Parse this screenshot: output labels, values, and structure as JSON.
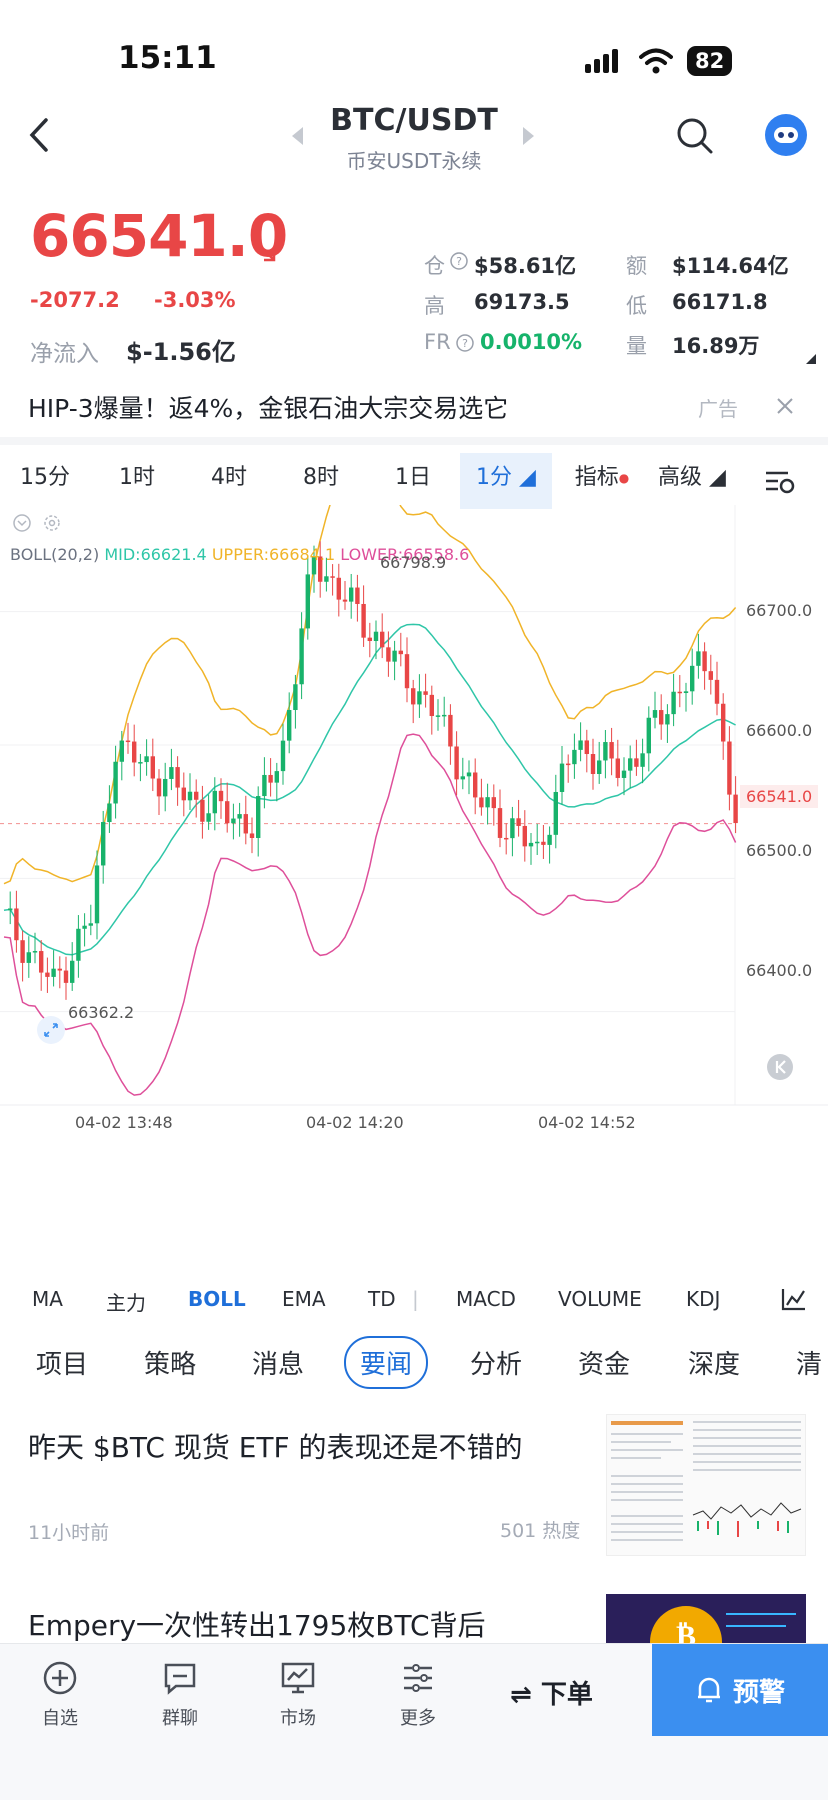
{
  "status": {
    "time": "15:11",
    "battery": "82"
  },
  "header": {
    "pair": "BTC/USDT",
    "subtitle": "币安USDT永续"
  },
  "ticker": {
    "price": "66541.0",
    "change": "-2077.2",
    "change_pct": "-3.03%",
    "netflow_label": "净流入",
    "netflow": "$-1.56亿",
    "oi_label": "仓",
    "oi": "$58.61亿",
    "vol_amt_label": "额",
    "vol_amt": "$114.64亿",
    "high_label": "高",
    "high": "69173.5",
    "low_label": "低",
    "low": "66171.8",
    "fr_label": "FR",
    "fr": "0.0010%",
    "qty_label": "量",
    "qty": "16.89万"
  },
  "ad": {
    "text": "HIP-3爆量！返4%，金银石油大宗交易选它",
    "tag": "广告"
  },
  "timeframes": [
    "15分",
    "1时",
    "4时",
    "8时",
    "1日",
    "1分",
    "指标",
    "高级"
  ],
  "boll": {
    "name": "BOLL(20,2)",
    "mid": "MID:66621.4",
    "upper": "UPPER:66684.1",
    "lower": "LOWER:66558.6"
  },
  "chart_data": {
    "type": "candlestick",
    "y_ticks": [
      "66700.0",
      "66600.0",
      "66500.0",
      "66400.0"
    ],
    "current_price": "66541.0",
    "high_label": "66798.9",
    "low_label": "66362.2",
    "x_ticks": [
      "04-02 13:48",
      "04-02 14:20",
      "04-02 14:52"
    ],
    "ylim": [
      66330,
      66780
    ],
    "colors": {
      "up": "#18b26b",
      "down": "#e84646",
      "mid": "#2fc6a8",
      "upper": "#f0b429",
      "lower": "#de4f9a"
    }
  },
  "indicators": [
    "MA",
    "主力",
    "BOLL",
    "EMA",
    "TD",
    "MACD",
    "VOLUME",
    "KDJ"
  ],
  "info_tabs": [
    "项目",
    "策略",
    "消息",
    "要闻",
    "分析",
    "资金",
    "深度",
    "清"
  ],
  "news": [
    {
      "title": "昨天 $BTC 现货 ETF 的表现还是不错的",
      "time": "11小时前",
      "heat": "501 热度"
    },
    {
      "title": "Empery一次性转出1795枚BTC背后"
    }
  ],
  "bottom_nav": {
    "items": [
      "自选",
      "群聊",
      "市场",
      "更多"
    ],
    "order": "下单",
    "alert": "预警"
  }
}
